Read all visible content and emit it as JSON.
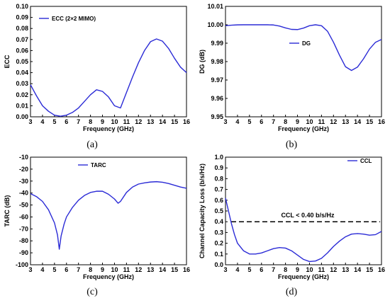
{
  "chart_data": [
    {
      "panel": "(a)",
      "type": "line",
      "xlabel": "Frequency (GHz)",
      "ylabel": "ECC",
      "xlim": [
        3,
        16
      ],
      "ylim": [
        0,
        0.1
      ],
      "xticks": [
        3,
        4,
        5,
        6,
        7,
        8,
        9,
        10,
        11,
        12,
        13,
        14,
        15,
        16
      ],
      "yticks": [
        0,
        0.01,
        0.02,
        0.03,
        0.04,
        0.05,
        0.06,
        0.07,
        0.08,
        0.09,
        0.1
      ],
      "ytick_labels": [
        "0.00",
        "0.01",
        "0.02",
        "0.03",
        "0.04",
        "0.05",
        "0.06",
        "0.07",
        "0.08",
        "0.09",
        "0.10"
      ],
      "legend": "top-left",
      "series": [
        {
          "name": "ECC (2×2 MIMO)",
          "color": "#2b2bd6",
          "x": [
            3,
            3.5,
            4,
            4.5,
            5,
            5.5,
            6,
            6.5,
            7,
            7.5,
            8,
            8.5,
            9,
            9.5,
            10,
            10.5,
            11,
            11.5,
            12,
            12.5,
            13,
            13.5,
            14,
            14.5,
            15,
            15.5,
            16
          ],
          "y": [
            0.029,
            0.019,
            0.01,
            0.005,
            0.0015,
            0.0005,
            0.0015,
            0.004,
            0.008,
            0.014,
            0.02,
            0.0245,
            0.023,
            0.018,
            0.01,
            0.008,
            0.022,
            0.036,
            0.049,
            0.06,
            0.068,
            0.0705,
            0.0685,
            0.062,
            0.053,
            0.045,
            0.04
          ]
        }
      ]
    },
    {
      "panel": "(b)",
      "type": "line",
      "xlabel": "Frequency (GHz)",
      "ylabel": "DG (dB)",
      "xlim": [
        3,
        16
      ],
      "ylim": [
        9.95,
        10.01
      ],
      "xticks": [
        3,
        4,
        5,
        6,
        7,
        8,
        9,
        10,
        11,
        12,
        13,
        14,
        15,
        16
      ],
      "yticks": [
        9.95,
        9.96,
        9.97,
        9.98,
        9.99,
        10,
        10.01
      ],
      "ytick_labels": [
        "9.95",
        "9.96",
        "9.97",
        "9.98",
        "9.99",
        "10.00",
        "10.01"
      ],
      "legend": "center",
      "series": [
        {
          "name": "DG",
          "color": "#2b2bd6",
          "x": [
            3,
            3.5,
            4,
            4.5,
            5,
            5.5,
            6,
            6.5,
            7,
            7.5,
            8,
            8.5,
            9,
            9.5,
            10,
            10.5,
            11,
            11.5,
            12,
            12.5,
            13,
            13.5,
            14,
            14.5,
            15,
            15.5,
            16
          ],
          "y": [
            9.9995,
            9.9998,
            9.99995,
            10,
            10,
            10,
            10,
            10,
            9.9999,
            9.9993,
            9.9983,
            9.9975,
            9.9974,
            9.9982,
            9.9995,
            10,
            9.9995,
            9.9965,
            9.9905,
            9.9835,
            9.9772,
            9.9752,
            9.977,
            9.9815,
            9.9868,
            9.9905,
            9.992
          ]
        }
      ]
    },
    {
      "panel": "(c)",
      "type": "line",
      "xlabel": "Frequency (GHz)",
      "ylabel": "TARC (dB)",
      "xlim": [
        3,
        16
      ],
      "ylim": [
        -100,
        -10
      ],
      "xticks": [
        3,
        4,
        5,
        6,
        7,
        8,
        9,
        10,
        11,
        12,
        13,
        14,
        15,
        16
      ],
      "yticks": [
        -100,
        -90,
        -80,
        -70,
        -60,
        -50,
        -40,
        -30,
        -20,
        -10
      ],
      "ytick_labels": [
        "-100",
        "-90",
        "-80",
        "-70",
        "-60",
        "-50",
        "-40",
        "-30",
        "-20",
        "-10"
      ],
      "legend": "top-left",
      "series": [
        {
          "name": "TARC",
          "color": "#2b2bd6",
          "x": [
            3,
            3.5,
            4,
            4.5,
            5,
            5.25,
            5.4,
            5.55,
            5.8,
            6,
            6.5,
            7,
            7.5,
            8,
            8.5,
            9,
            9.5,
            10,
            10.3,
            10.5,
            11,
            11.5,
            12,
            12.5,
            13,
            13.5,
            14,
            14.5,
            15,
            15.5,
            16
          ],
          "y": [
            -40.5,
            -43,
            -47,
            -54,
            -65,
            -75,
            -87,
            -76,
            -66,
            -60,
            -52,
            -46,
            -42,
            -39.5,
            -38.5,
            -38.5,
            -41,
            -45,
            -48.5,
            -47,
            -39.5,
            -35,
            -32.5,
            -31.5,
            -30.8,
            -30.5,
            -31,
            -32,
            -33.5,
            -35,
            -36
          ]
        }
      ]
    },
    {
      "panel": "(d)",
      "type": "line",
      "xlabel": "Frequency (GHz)",
      "ylabel": "Channel Capacity Loss (b/s/Hz)",
      "xlim": [
        3,
        16
      ],
      "ylim": [
        0,
        1
      ],
      "xticks": [
        3,
        4,
        5,
        6,
        7,
        8,
        9,
        10,
        11,
        12,
        13,
        14,
        15,
        16
      ],
      "yticks": [
        0,
        0.1,
        0.2,
        0.3,
        0.4,
        0.5,
        0.6,
        0.7,
        0.8,
        0.9,
        1
      ],
      "ytick_labels": [
        "0.0",
        "0.1",
        "0.2",
        "0.3",
        "0.4",
        "0.5",
        "0.6",
        "0.7",
        "0.8",
        "0.9",
        "1.0"
      ],
      "legend": "top-right",
      "reference_line": {
        "y": 0.4,
        "label": "CCL < 0.40 b/s/Hz",
        "style": "dashed",
        "color": "#000000"
      },
      "series": [
        {
          "name": "CCL",
          "color": "#2b2bd6",
          "x": [
            3,
            3.25,
            3.5,
            3.75,
            4,
            4.5,
            5,
            5.5,
            6,
            6.5,
            7,
            7.5,
            8,
            8.5,
            9,
            9.5,
            10,
            10.5,
            11,
            11.5,
            12,
            12.5,
            13,
            13.5,
            14,
            14.5,
            15,
            15.5,
            16
          ],
          "y": [
            0.62,
            0.5,
            0.38,
            0.28,
            0.2,
            0.13,
            0.1,
            0.1,
            0.11,
            0.13,
            0.15,
            0.16,
            0.155,
            0.13,
            0.09,
            0.05,
            0.03,
            0.035,
            0.06,
            0.11,
            0.17,
            0.22,
            0.26,
            0.285,
            0.29,
            0.285,
            0.275,
            0.28,
            0.31
          ]
        }
      ]
    }
  ]
}
